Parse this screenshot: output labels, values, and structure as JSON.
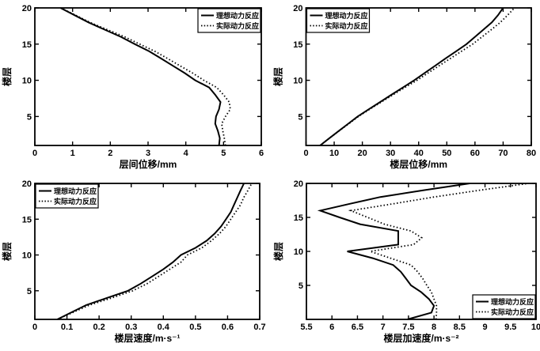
{
  "figure": {
    "background": "#ffffff",
    "line_color": "#000000",
    "legend_labels": {
      "ideal": "理想动力反应",
      "actual": "实际动力反应"
    }
  },
  "chart_data": [
    {
      "id": "interstory-displacement",
      "type": "line",
      "title": "",
      "xlabel": "层间位移/mm",
      "ylabel": "楼层",
      "xlim": [
        0,
        6
      ],
      "xticks": [
        0,
        1,
        2,
        3,
        4,
        5,
        6
      ],
      "ylim": [
        1,
        20
      ],
      "yticks": [
        5,
        10,
        15,
        20
      ],
      "grid": false,
      "legend_position": "top-right",
      "floors": [
        1,
        2,
        3,
        4,
        5,
        6,
        7,
        8,
        9,
        10,
        11,
        12,
        13,
        14,
        15,
        16,
        17,
        18,
        19,
        20
      ],
      "series": [
        {
          "name": "理想动力反应",
          "style": "solid",
          "values": [
            4.88,
            4.9,
            4.85,
            4.78,
            4.8,
            4.88,
            4.92,
            4.78,
            4.62,
            4.25,
            3.97,
            3.66,
            3.35,
            3.03,
            2.65,
            2.28,
            1.85,
            1.42,
            1.05,
            0.68
          ]
        },
        {
          "name": "实际动力反应",
          "style": "dotted",
          "values": [
            5.05,
            5.02,
            4.98,
            4.95,
            5.05,
            5.18,
            5.15,
            5.0,
            4.82,
            4.48,
            4.18,
            3.85,
            3.52,
            3.18,
            2.78,
            2.38,
            1.92,
            1.46,
            1.08,
            0.68
          ]
        }
      ]
    },
    {
      "id": "floor-displacement",
      "type": "line",
      "title": "",
      "xlabel": "楼层位移/mm",
      "ylabel": "楼层",
      "xlim": [
        0,
        80
      ],
      "xticks": [
        0,
        10,
        20,
        30,
        40,
        50,
        60,
        70,
        80
      ],
      "ylim": [
        1,
        20
      ],
      "yticks": [
        5,
        10,
        15,
        20
      ],
      "grid": false,
      "legend_position": "top-left",
      "floors": [
        1,
        2,
        3,
        4,
        5,
        6,
        7,
        8,
        9,
        10,
        11,
        12,
        13,
        14,
        15,
        16,
        17,
        18,
        19,
        20
      ],
      "series": [
        {
          "name": "理想动力反应",
          "style": "solid",
          "values": [
            5,
            8.3,
            11.6,
            15,
            18.3,
            22.3,
            26.3,
            30.3,
            34.4,
            38.4,
            42.1,
            45.8,
            49.5,
            53.3,
            57,
            60,
            63,
            66,
            68.2,
            70
          ]
        },
        {
          "name": "实际动力反应",
          "style": "dotted",
          "values": [
            5,
            8.3,
            11.7,
            15.2,
            18.6,
            22.6,
            26.7,
            30.9,
            35.1,
            39.4,
            43.3,
            47.2,
            51.2,
            55.2,
            59.2,
            62.5,
            65.8,
            69,
            71.6,
            74
          ]
        }
      ]
    },
    {
      "id": "floor-velocity",
      "type": "line",
      "title": "",
      "xlabel": "楼层速度/m·s⁻¹",
      "ylabel": "楼层",
      "xlim": [
        0,
        0.7
      ],
      "xticks": [
        0,
        0.1,
        0.2,
        0.3,
        0.4,
        0.5,
        0.6,
        0.7
      ],
      "ylim": [
        1,
        20
      ],
      "yticks": [
        5,
        10,
        15,
        20
      ],
      "grid": false,
      "legend_position": "top-left",
      "floors": [
        1,
        2,
        3,
        4,
        5,
        6,
        7,
        8,
        9,
        10,
        11,
        12,
        13,
        14,
        15,
        16,
        17,
        18,
        19,
        20
      ],
      "series": [
        {
          "name": "理想动力反应",
          "style": "solid",
          "values": [
            0.07,
            0.115,
            0.16,
            0.225,
            0.29,
            0.33,
            0.365,
            0.4,
            0.43,
            0.455,
            0.5,
            0.535,
            0.56,
            0.58,
            0.595,
            0.61,
            0.62,
            0.63,
            0.64,
            0.651
          ]
        },
        {
          "name": "实际动力反应",
          "style": "dotted",
          "values": [
            0.07,
            0.12,
            0.17,
            0.24,
            0.305,
            0.35,
            0.385,
            0.42,
            0.455,
            0.475,
            0.52,
            0.55,
            0.575,
            0.595,
            0.61,
            0.625,
            0.64,
            0.65,
            0.663,
            0.675
          ]
        }
      ]
    },
    {
      "id": "floor-acceleration",
      "type": "line",
      "title": "",
      "xlabel": "楼层加速度/m·s⁻²",
      "ylabel": "楼层",
      "xlim": [
        5.5,
        10
      ],
      "xticks": [
        5.5,
        6,
        6.5,
        7,
        7.5,
        8,
        8.5,
        9,
        9.5,
        10
      ],
      "ylim": [
        0,
        20
      ],
      "yticks": [
        5,
        10,
        15,
        20
      ],
      "grid": false,
      "legend_position": "bottom-right",
      "floors": [
        0,
        1,
        2,
        3,
        4,
        5,
        6,
        7,
        8,
        9,
        10,
        11,
        12,
        13,
        14,
        15,
        16,
        17,
        18,
        19,
        20
      ],
      "series": [
        {
          "name": "理想动力反应",
          "style": "solid",
          "values": [
            7.48,
            7.95,
            8.0,
            7.9,
            7.75,
            7.55,
            7.45,
            7.35,
            7.2,
            6.8,
            6.3,
            7.3,
            7.3,
            7.3,
            6.55,
            6.15,
            5.77,
            6.35,
            6.95,
            7.8,
            8.7
          ]
        },
        {
          "name": "实际动力反应",
          "style": "dotted",
          "values": [
            8.04,
            8.05,
            8.05,
            8.0,
            7.95,
            7.86,
            7.78,
            7.68,
            7.55,
            7.15,
            6.75,
            7.6,
            7.76,
            7.55,
            7.03,
            6.7,
            6.37,
            7.2,
            8.0,
            8.9,
            9.85
          ]
        }
      ]
    }
  ]
}
